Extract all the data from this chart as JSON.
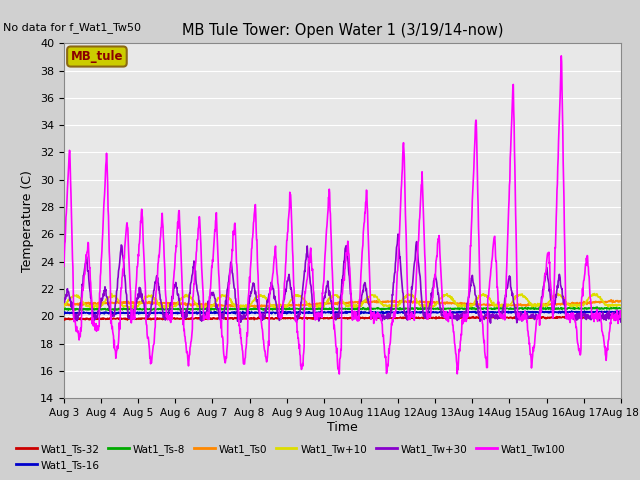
{
  "title": "MB Tule Tower: Open Water 1 (3/19/14-now)",
  "no_data_text": "No data for f_Wat1_Tw50",
  "xlabel": "Time",
  "ylabel": "Temperature (C)",
  "ylim": [
    14,
    40
  ],
  "yticks": [
    14,
    16,
    18,
    20,
    22,
    24,
    26,
    28,
    30,
    32,
    34,
    36,
    38,
    40
  ],
  "xtick_labels": [
    "Aug 3",
    "Aug 4",
    "Aug 5",
    "Aug 6",
    "Aug 7",
    "Aug 8",
    "Aug 9",
    "Aug 10",
    "Aug 11",
    "Aug 12",
    "Aug 13",
    "Aug 14",
    "Aug 15",
    "Aug 16",
    "Aug 17",
    "Aug 18"
  ],
  "bg_color": "#e8e8e8",
  "legend_box_color": "#cccc00",
  "legend_box_text": "MB_tule",
  "legend_box_text_color": "#8b0000",
  "series": {
    "Wat1_Ts-32": {
      "color": "#cc0000",
      "lw": 1.2
    },
    "Wat1_Ts-16": {
      "color": "#0000cc",
      "lw": 1.2
    },
    "Wat1_Ts-8": {
      "color": "#00aa00",
      "lw": 1.2
    },
    "Wat1_Ts0": {
      "color": "#ff8800",
      "lw": 1.2
    },
    "Wat1_Tw+10": {
      "color": "#dddd00",
      "lw": 1.2
    },
    "Wat1_Tw+30": {
      "color": "#8800cc",
      "lw": 1.2
    },
    "Wat1_Tw100": {
      "color": "#ff00ff",
      "lw": 1.2
    }
  }
}
